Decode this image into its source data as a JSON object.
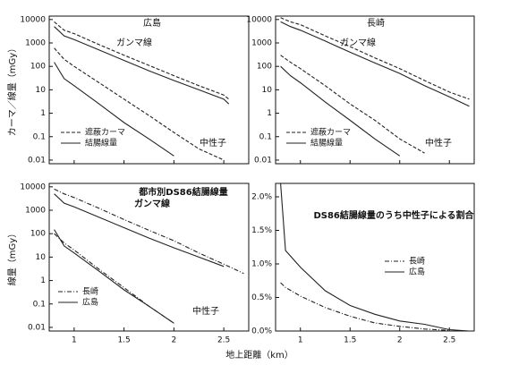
{
  "xlabel": "地上距離（km）",
  "chart_data": [
    {
      "type": "line",
      "title": "広島",
      "ylabel": "カーマ／線量（mGy）",
      "log_y": true,
      "xtick_labels": false,
      "xlim": [
        0.75,
        2.75
      ],
      "ylim": [
        0.007,
        14000
      ],
      "xticks": [
        1.0,
        1.5,
        2.0,
        2.5
      ],
      "yticks": [
        0.01,
        0.1,
        1,
        10,
        100,
        1000,
        10000
      ],
      "annotations": [
        "ガンマ線",
        "中性子"
      ],
      "legend": "lower left",
      "x": [
        0.8,
        0.9,
        1.0,
        1.25,
        1.5,
        1.75,
        2.0,
        2.25,
        2.5,
        2.55
      ],
      "series": [
        {
          "name": "遮蔽カーマ",
          "dash": "dashed",
          "color": "#222",
          "gamma": [
            8000,
            3500,
            2500,
            850,
            300,
            110,
            40,
            15,
            6,
            4
          ],
          "neutron": [
            600,
            200,
            100,
            20,
            4,
            0.8,
            0.15,
            0.03,
            0.01,
            null
          ]
        },
        {
          "name": "結腸線量",
          "dash": "solid",
          "color": "#222",
          "gamma": [
            5000,
            2000,
            1400,
            500,
            180,
            65,
            25,
            10,
            4,
            2.5
          ],
          "neutron": [
            150,
            30,
            15,
            2.5,
            0.4,
            0.08,
            0.015,
            null,
            null,
            null
          ]
        }
      ]
    },
    {
      "type": "line",
      "title": "長崎",
      "log_y": true,
      "xtick_labels": false,
      "xlim": [
        0.75,
        2.75
      ],
      "ylim": [
        0.007,
        14000
      ],
      "xticks": [
        1.0,
        1.5,
        2.0,
        2.5
      ],
      "yticks": [
        0.01,
        0.1,
        1,
        10,
        100,
        1000,
        10000
      ],
      "annotations": [
        "ガンマ線",
        "中性子"
      ],
      "legend": "lower left",
      "x": [
        0.8,
        0.9,
        1.0,
        1.25,
        1.5,
        1.75,
        2.0,
        2.25,
        2.5,
        2.7
      ],
      "series": [
        {
          "name": "遮蔽カーマ",
          "dash": "dashed",
          "color": "#222",
          "gamma": [
            12000,
            8000,
            6000,
            2000,
            700,
            230,
            80,
            25,
            8,
            4
          ],
          "neutron": [
            300,
            150,
            80,
            15,
            2.5,
            0.5,
            0.08,
            0.02,
            null,
            null
          ]
        },
        {
          "name": "結腸線量",
          "dash": "solid",
          "color": "#222",
          "gamma": [
            8000,
            5000,
            3500,
            1200,
            400,
            140,
            50,
            15,
            5,
            2
          ],
          "neutron": [
            100,
            40,
            20,
            3,
            0.5,
            0.08,
            0.015,
            null,
            null,
            null
          ]
        }
      ]
    },
    {
      "type": "line",
      "title": "都市別DS86結腸線量",
      "subtitle": "ガンマ線",
      "ylabel": "線量（mGy）",
      "log_y": true,
      "xtick_labels": true,
      "xlim": [
        0.75,
        2.75
      ],
      "ylim": [
        0.007,
        14000
      ],
      "xticks": [
        1.0,
        1.5,
        2.0,
        2.5
      ],
      "yticks": [
        0.01,
        0.1,
        1,
        10,
        100,
        1000,
        10000
      ],
      "annotations": [
        "中性子"
      ],
      "legend": "lower left",
      "x": [
        0.8,
        0.9,
        1.0,
        1.25,
        1.5,
        1.75,
        2.0,
        2.25,
        2.5,
        2.7
      ],
      "series": [
        {
          "name": "長崎",
          "dash": "dashdot",
          "color": "#222",
          "gamma": [
            8000,
            5000,
            3500,
            1200,
            400,
            140,
            50,
            15,
            5,
            2
          ],
          "neutron": [
            100,
            40,
            20,
            3,
            0.5,
            0.08,
            0.015,
            null,
            null,
            null
          ]
        },
        {
          "name": "広島",
          "dash": "solid",
          "color": "#222",
          "gamma": [
            5000,
            2000,
            1400,
            500,
            180,
            65,
            25,
            10,
            4,
            null
          ],
          "neutron": [
            150,
            30,
            15,
            2.5,
            0.4,
            0.08,
            0.015,
            null,
            null,
            null
          ]
        }
      ]
    },
    {
      "type": "line",
      "title": "DS86結腸線量のうち中性子による割合",
      "log_y": false,
      "xtick_labels": true,
      "xlim": [
        0.75,
        2.75
      ],
      "ylim": [
        0,
        2.2
      ],
      "xticks": [
        1.0,
        1.5,
        2.0,
        2.5
      ],
      "yticks": [
        {
          "value": 0,
          "label": "0.0%"
        },
        {
          "value": 0.5,
          "label": "0.5%"
        },
        {
          "value": 1.0,
          "label": "1.0%"
        },
        {
          "value": 1.5,
          "label": "1.5%"
        },
        {
          "value": 2.0,
          "label": "2.0%"
        }
      ],
      "legend": "center right",
      "x": [
        0.8,
        0.85,
        1.0,
        1.25,
        1.5,
        1.75,
        2.0,
        2.25,
        2.5,
        2.7
      ],
      "series": [
        {
          "name": "長崎",
          "dash": "dashdot",
          "color": "#222",
          "values": [
            0.72,
            0.65,
            0.52,
            0.35,
            0.22,
            0.12,
            0.07,
            0.03,
            0.01,
            null
          ]
        },
        {
          "name": "広島",
          "dash": "solid",
          "color": "#222",
          "values": [
            2.2,
            1.2,
            0.95,
            0.6,
            0.38,
            0.25,
            0.15,
            0.1,
            0.02,
            0
          ]
        }
      ]
    }
  ]
}
